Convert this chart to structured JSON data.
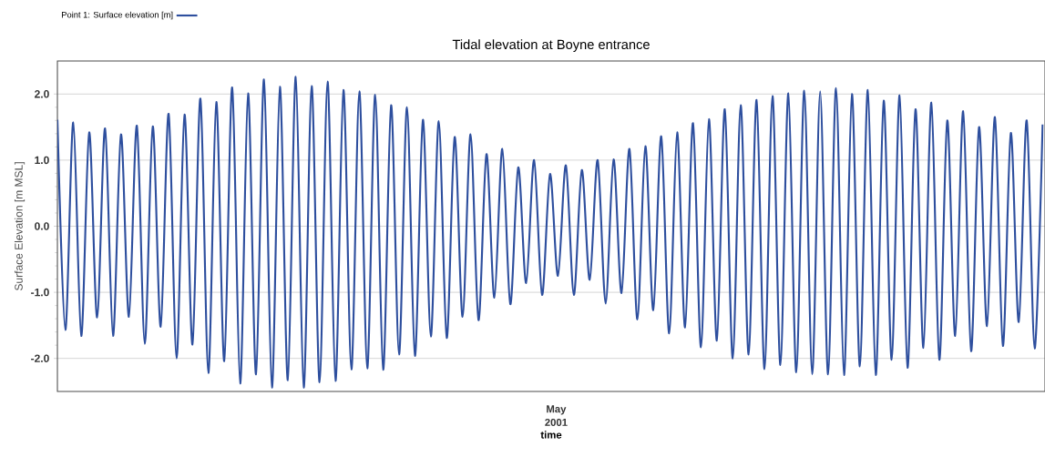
{
  "chart_data": {
    "type": "line",
    "title": "Tidal elevation at Boyne entrance",
    "xlabel": "time",
    "ylabel": "Surface Elevation [m MSL]",
    "legend": "top left",
    "grid": "y",
    "marker": "none",
    "line_style": "solid",
    "annotations": [
      "May 2001"
    ],
    "ylim": [
      -2.5,
      2.5
    ],
    "yticks": [
      {
        "value": -2,
        "label": "-2.0"
      },
      {
        "value": -1,
        "label": "-1.0"
      },
      {
        "value": 0,
        "label": "0.0"
      },
      {
        "value": 1,
        "label": "1.0"
      },
      {
        "value": 2,
        "label": "2.0"
      }
    ],
    "categories": [
      null,
      null,
      null,
      null,
      null,
      null,
      null,
      null,
      null,
      null,
      null,
      null,
      null,
      null,
      null,
      null,
      null,
      null,
      null,
      null,
      null,
      null,
      null,
      null,
      null,
      null,
      null,
      null,
      null,
      null,
      null,
      null,
      null,
      null,
      null,
      null,
      null,
      null,
      null,
      null,
      null,
      null,
      null,
      null,
      null,
      null,
      null,
      null,
      null,
      null,
      null,
      null,
      null,
      null,
      null,
      null,
      null,
      null,
      null,
      null,
      null,
      null,
      null,
      null,
      null,
      null,
      null,
      null,
      null,
      null,
      null,
      null,
      null,
      null,
      null,
      null,
      null,
      null,
      null,
      null,
      null,
      null,
      null,
      null,
      null,
      null,
      null,
      null,
      null,
      null,
      null,
      null,
      null,
      null,
      null,
      null,
      null,
      null,
      null,
      null,
      null,
      null,
      null,
      null,
      null,
      null,
      null,
      null,
      null,
      null,
      null,
      null,
      null,
      null,
      null,
      null,
      null,
      null,
      null,
      null,
      null,
      null,
      null,
      null,
      null
    ],
    "series": [
      {
        "name": "Point 1: Surface elevation [m]",
        "color": "#2e4f9e",
        "values": [
          1.61,
          -1.57,
          1.57,
          -1.66,
          1.42,
          -1.38,
          1.48,
          -1.66,
          1.39,
          -1.37,
          1.52,
          -1.78,
          1.51,
          -1.52,
          1.7,
          -2.0,
          1.69,
          -1.79,
          1.93,
          -2.22,
          1.88,
          -2.04,
          2.1,
          -2.38,
          2.01,
          -2.24,
          2.22,
          -2.44,
          2.11,
          -2.33,
          2.26,
          -2.44,
          2.12,
          -2.36,
          2.19,
          -2.34,
          2.06,
          -2.17,
          2.04,
          -2.15,
          1.99,
          -2.17,
          1.83,
          -1.94,
          1.8,
          -1.96,
          1.61,
          -1.67,
          1.59,
          -1.69,
          1.35,
          -1.37,
          1.39,
          -1.42,
          1.09,
          -1.08,
          1.17,
          -1.18,
          0.89,
          -0.86,
          1.0,
          -1.04,
          0.79,
          -0.75,
          0.92,
          -1.04,
          0.85,
          -0.81,
          1.0,
          -1.17,
          1.01,
          -1.01,
          1.17,
          -1.41,
          1.21,
          -1.27,
          1.36,
          -1.62,
          1.42,
          -1.53,
          1.56,
          -1.83,
          1.62,
          -1.73,
          1.77,
          -2.0,
          1.83,
          -1.94,
          1.91,
          -2.16,
          1.97,
          -2.1,
          2.01,
          -2.21,
          2.05,
          -2.24,
          2.04,
          -2.24,
          2.09,
          -2.25,
          2.0,
          -2.12,
          2.06,
          -2.25,
          1.9,
          -2.02,
          1.98,
          -2.14,
          1.77,
          -1.84,
          1.87,
          -2.02,
          1.6,
          -1.66,
          1.74,
          -1.89,
          1.5,
          -1.51,
          1.65,
          -1.81,
          1.41,
          -1.45,
          1.6,
          -1.85,
          1.54
        ]
      }
    ]
  }
}
